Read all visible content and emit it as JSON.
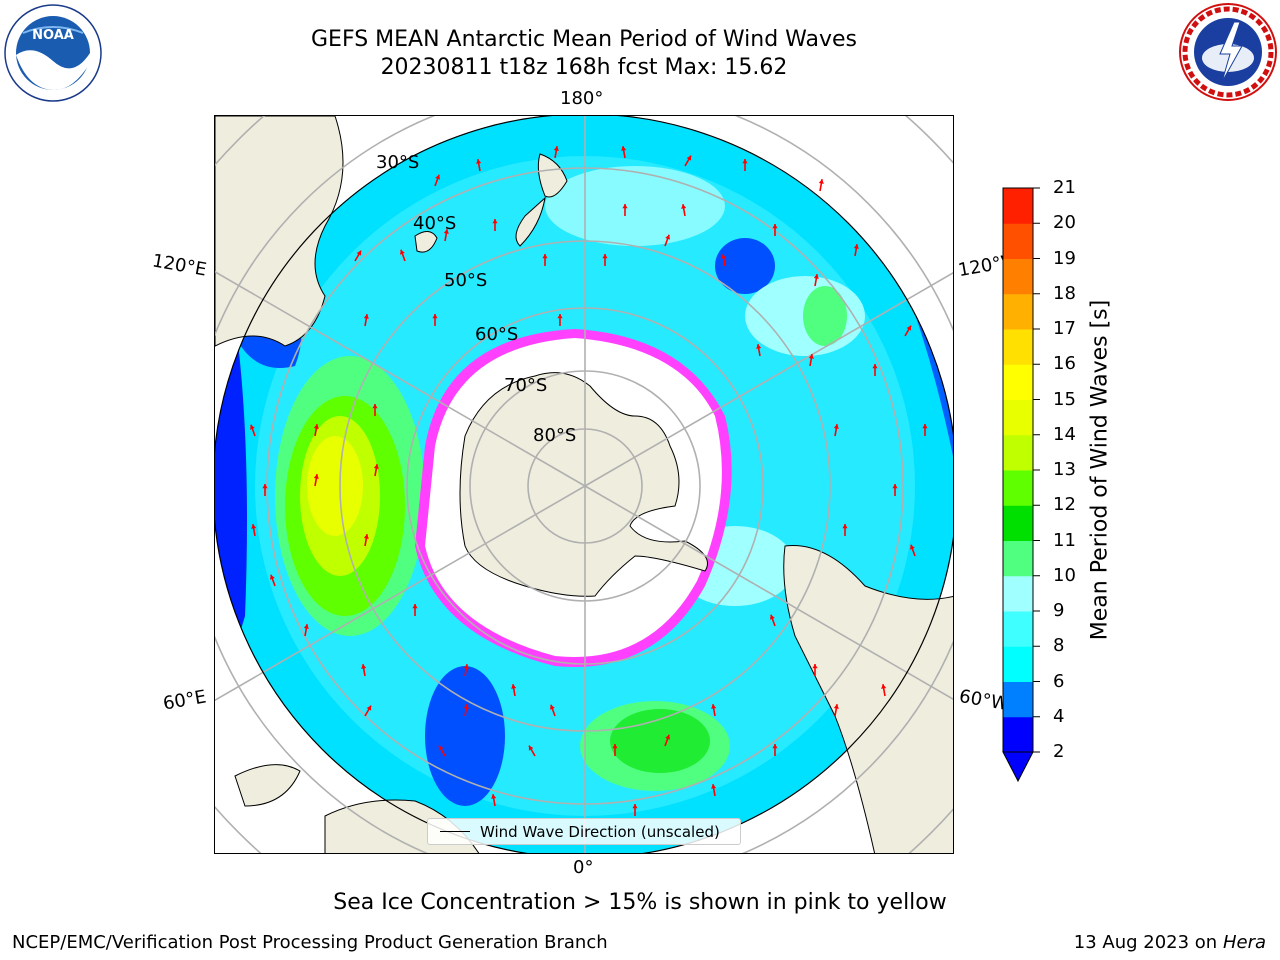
{
  "header": {
    "title_line1": "GEFS MEAN Antarctic Mean Period of Wind Waves",
    "title_line2": "20230811 t18z 168h fcst   Max: 15.62",
    "logo_left": "noaa-logo",
    "logo_right": "nws-logo"
  },
  "map": {
    "projection": "south-polar-stereographic",
    "longitude_labels": [
      "180°",
      "120°E",
      "120°W",
      "60°E",
      "60°W",
      "0°"
    ],
    "latitude_labels": [
      "30°S",
      "40°S",
      "50°S",
      "60°S",
      "70°S",
      "80°S"
    ],
    "legend_label": "Wind Wave Direction (unscaled)",
    "arrow_color": "#ff0000",
    "land_color": "#efedde",
    "sea_ice_color": "#ffffff"
  },
  "colorbar": {
    "title": "Mean Period of Wind Waves [s]",
    "ticks": [
      "21",
      "20",
      "19",
      "18",
      "17",
      "16",
      "15",
      "14",
      "13",
      "12",
      "11",
      "10",
      "9",
      "8",
      "6",
      "4",
      "2"
    ],
    "levels": [
      2,
      4,
      6,
      8,
      9,
      10,
      11,
      12,
      13,
      14,
      15,
      16,
      17,
      18,
      19,
      20,
      21
    ],
    "colors": [
      "#0000ff",
      "#0080ff",
      "#00ffff",
      "#40ffff",
      "#a0ffff",
      "#50ff80",
      "#00e000",
      "#60ff00",
      "#c0ff00",
      "#e8ff00",
      "#ffff00",
      "#ffe000",
      "#ffb000",
      "#ff8000",
      "#ff5000",
      "#ff2000",
      "#ff0000"
    ]
  },
  "note": "Sea Ice Concentration > 15% is shown in pink to yellow",
  "footer": {
    "left": "NCEP/EMC/Verification Post Processing Product Generation Branch",
    "date": "13 Aug 2023 on",
    "machine": "Hera"
  }
}
